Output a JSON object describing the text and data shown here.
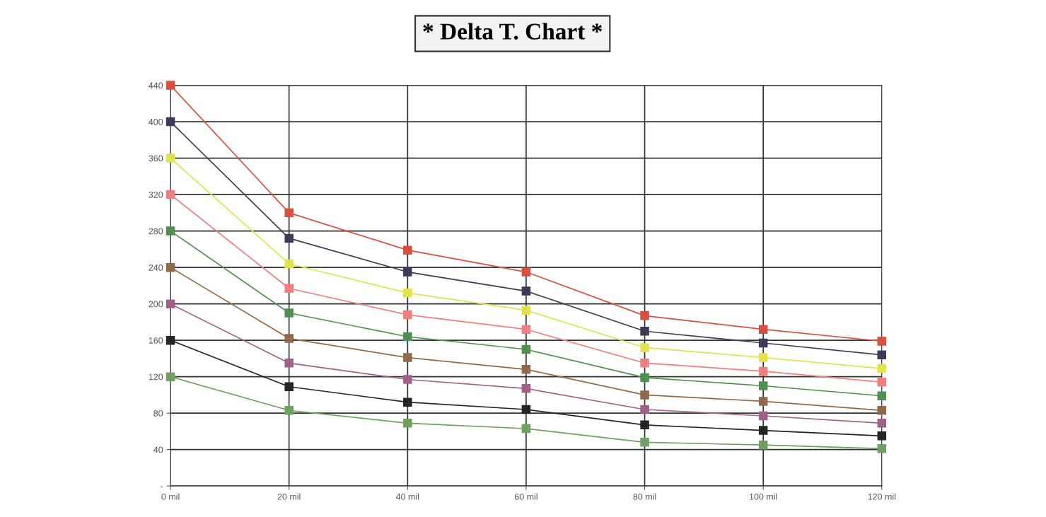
{
  "chart_data": {
    "type": "line",
    "title": "* Delta T. Chart *",
    "categories": [
      "0 mil",
      "20 mil",
      "40 mil",
      "60 mil",
      "80 mil",
      "100 mil",
      "120 mil"
    ],
    "series": [
      {
        "color": "#d9503f",
        "values": [
          440,
          300,
          259,
          235,
          187,
          172,
          159
        ]
      },
      {
        "color": "#3c3c5a",
        "values": [
          400,
          272,
          235,
          214,
          170,
          157,
          144
        ]
      },
      {
        "color": "#e2e24a",
        "values": [
          360,
          244,
          212,
          193,
          152,
          141,
          129
        ]
      },
      {
        "color": "#f08080",
        "values": [
          320,
          217,
          188,
          172,
          135,
          126,
          114
        ]
      },
      {
        "color": "#4f8f4f",
        "values": [
          280,
          190,
          164,
          150,
          119,
          110,
          99
        ]
      },
      {
        "color": "#8f6a4a",
        "values": [
          240,
          162,
          141,
          128,
          100,
          93,
          83
        ]
      },
      {
        "color": "#a0608a",
        "values": [
          200,
          135,
          117,
          107,
          84,
          77,
          69
        ]
      },
      {
        "color": "#202820",
        "values": [
          160,
          109,
          92,
          84,
          67,
          61,
          55
        ]
      },
      {
        "color": "#70a060",
        "values": [
          120,
          83,
          69,
          63,
          48,
          45,
          41
        ]
      }
    ],
    "ylim": [
      0,
      440
    ],
    "yticks": [
      {
        "value": 0,
        "label": "-"
      },
      40,
      80,
      120,
      160,
      200,
      240,
      280,
      320,
      360,
      400,
      440
    ],
    "grid": true,
    "marker": "square",
    "line_style": "solid"
  }
}
